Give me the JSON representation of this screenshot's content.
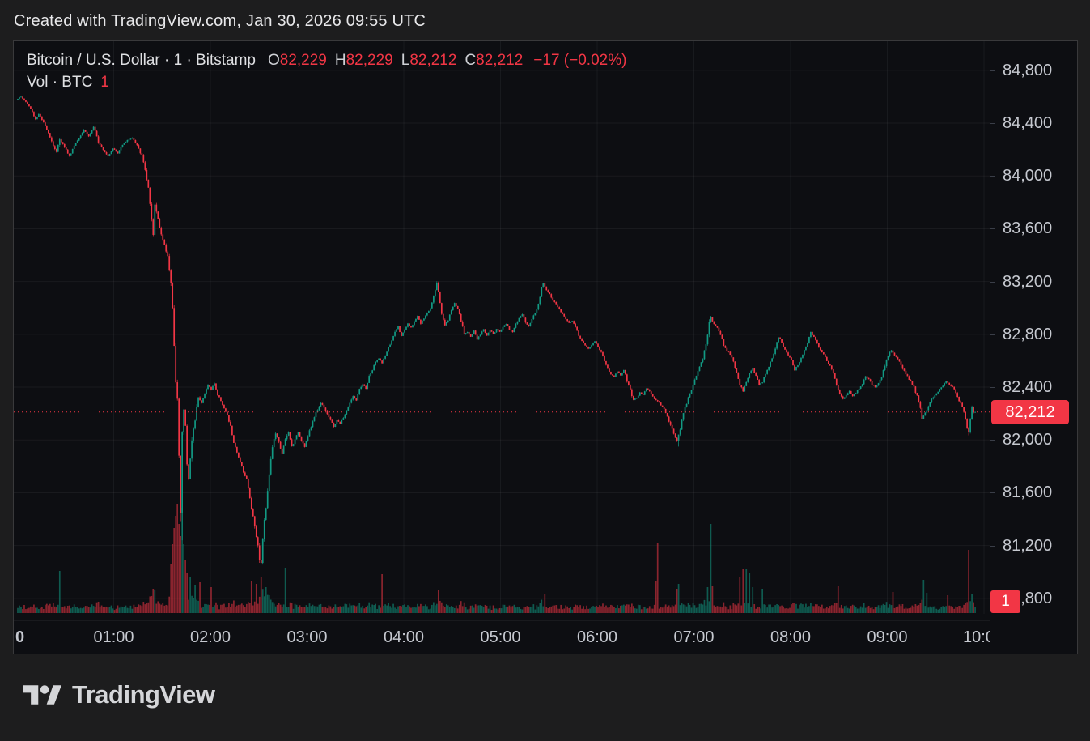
{
  "topbar": {
    "text": "Created with TradingView.com, Jan 30, 2026 09:55 UTC"
  },
  "legend": {
    "title": "Bitcoin / U.S. Dollar · 1 · Bitstamp",
    "ohlc": [
      {
        "label": "O",
        "value": "82,229"
      },
      {
        "label": "H",
        "value": "82,229"
      },
      {
        "label": "L",
        "value": "82,212"
      },
      {
        "label": "C",
        "value": "82,212"
      }
    ],
    "change": "−17 (−0.02%)",
    "volume_row": {
      "label": "Vol · BTC",
      "value": "1"
    }
  },
  "price_axis": {
    "ticks": [
      "84,800",
      "84,400",
      "84,000",
      "83,600",
      "83,200",
      "82,800",
      "82,400",
      "82,000",
      "81,600",
      "81,200",
      "80,800"
    ],
    "tick_prices": [
      84800,
      84400,
      84000,
      83600,
      83200,
      82800,
      82400,
      82000,
      81600,
      81200,
      80800
    ],
    "price_label": "82,212",
    "volume_label": "1"
  },
  "time_axis": {
    "ticks": [
      {
        "label": "0",
        "t": 0
      },
      {
        "label": "01:00",
        "t": 60
      },
      {
        "label": "02:00",
        "t": 120
      },
      {
        "label": "03:00",
        "t": 180
      },
      {
        "label": "04:00",
        "t": 240
      },
      {
        "label": "05:00",
        "t": 300
      },
      {
        "label": "06:00",
        "t": 360
      },
      {
        "label": "07:00",
        "t": 420
      },
      {
        "label": "08:00",
        "t": 480
      },
      {
        "label": "09:00",
        "t": 540
      },
      {
        "label": "10:0",
        "t": 600
      }
    ]
  },
  "footer": {
    "brand": "TradingView"
  },
  "colors": {
    "up": "#129a84",
    "down": "#f23645",
    "vol_up": "rgba(18,154,132,0.55)",
    "vol_down": "rgba(242,54,69,0.55)",
    "grid": "rgba(255,255,255,0.05)",
    "accent_red": "#f23645",
    "axis_text": "#c6c9d0",
    "panel_bg": "#0d0e12"
  },
  "chart_data": {
    "type": "candlestick",
    "symbol": "Bitcoin / U.S. Dollar",
    "interval": "1",
    "exchange": "Bitstamp",
    "session_start": "00:00",
    "session_end": "09:55",
    "minutes": 595,
    "current_price": 82212,
    "last": {
      "open": 82229,
      "high": 82229,
      "low": 82212,
      "close": 82212,
      "change": -17,
      "change_pct": -0.02
    },
    "y_axis": {
      "min_visible": 80800,
      "max_visible": 84800,
      "step": 400
    },
    "price_path": [
      [
        0,
        84580
      ],
      [
        3,
        84600
      ],
      [
        6,
        84560
      ],
      [
        9,
        84510
      ],
      [
        12,
        84430
      ],
      [
        14,
        84470
      ],
      [
        17,
        84400
      ],
      [
        20,
        84330
      ],
      [
        23,
        84230
      ],
      [
        25,
        84180
      ],
      [
        27,
        84280
      ],
      [
        30,
        84220
      ],
      [
        33,
        84150
      ],
      [
        36,
        84230
      ],
      [
        39,
        84290
      ],
      [
        42,
        84350
      ],
      [
        45,
        84300
      ],
      [
        48,
        84370
      ],
      [
        51,
        84260
      ],
      [
        54,
        84200
      ],
      [
        57,
        84150
      ],
      [
        60,
        84210
      ],
      [
        63,
        84170
      ],
      [
        66,
        84240
      ],
      [
        69,
        84270
      ],
      [
        72,
        84290
      ],
      [
        75,
        84230
      ],
      [
        78,
        84150
      ],
      [
        80,
        84050
      ],
      [
        82,
        83900
      ],
      [
        84,
        83650
      ],
      [
        85,
        83550
      ],
      [
        86,
        83780
      ],
      [
        88,
        83680
      ],
      [
        90,
        83560
      ],
      [
        92,
        83470
      ],
      [
        94,
        83390
      ],
      [
        96,
        83200
      ],
      [
        97,
        83000
      ],
      [
        98,
        82700
      ],
      [
        99,
        82420
      ],
      [
        100,
        82330
      ],
      [
        101,
        81900
      ],
      [
        102,
        81450
      ],
      [
        103,
        82050
      ],
      [
        104,
        82230
      ],
      [
        105,
        82100
      ],
      [
        106,
        81820
      ],
      [
        107,
        81700
      ],
      [
        108,
        81860
      ],
      [
        109,
        82000
      ],
      [
        111,
        82160
      ],
      [
        113,
        82330
      ],
      [
        115,
        82280
      ],
      [
        117,
        82350
      ],
      [
        119,
        82420
      ],
      [
        121,
        82380
      ],
      [
        123,
        82430
      ],
      [
        125,
        82340
      ],
      [
        127,
        82300
      ],
      [
        129,
        82240
      ],
      [
        131,
        82180
      ],
      [
        133,
        82100
      ],
      [
        135,
        81980
      ],
      [
        137,
        81900
      ],
      [
        139,
        81840
      ],
      [
        141,
        81760
      ],
      [
        143,
        81700
      ],
      [
        145,
        81560
      ],
      [
        147,
        81420
      ],
      [
        149,
        81280
      ],
      [
        151,
        81100
      ],
      [
        152,
        81060
      ],
      [
        153,
        81260
      ],
      [
        155,
        81500
      ],
      [
        157,
        81750
      ],
      [
        159,
        81950
      ],
      [
        161,
        82050
      ],
      [
        163,
        81980
      ],
      [
        165,
        81900
      ],
      [
        167,
        82000
      ],
      [
        169,
        82060
      ],
      [
        171,
        81950
      ],
      [
        173,
        82000
      ],
      [
        175,
        82060
      ],
      [
        177,
        82000
      ],
      [
        179,
        81950
      ],
      [
        181,
        82030
      ],
      [
        183,
        82100
      ],
      [
        185,
        82180
      ],
      [
        187,
        82230
      ],
      [
        189,
        82280
      ],
      [
        191,
        82250
      ],
      [
        193,
        82200
      ],
      [
        195,
        82150
      ],
      [
        197,
        82100
      ],
      [
        199,
        82150
      ],
      [
        201,
        82120
      ],
      [
        203,
        82170
      ],
      [
        205,
        82220
      ],
      [
        207,
        82280
      ],
      [
        209,
        82330
      ],
      [
        211,
        82300
      ],
      [
        213,
        82380
      ],
      [
        215,
        82420
      ],
      [
        217,
        82390
      ],
      [
        219,
        82480
      ],
      [
        221,
        82530
      ],
      [
        223,
        82590
      ],
      [
        225,
        82620
      ],
      [
        227,
        82580
      ],
      [
        229,
        82640
      ],
      [
        231,
        82700
      ],
      [
        233,
        82750
      ],
      [
        235,
        82820
      ],
      [
        237,
        82860
      ],
      [
        239,
        82790
      ],
      [
        241,
        82830
      ],
      [
        243,
        82880
      ],
      [
        245,
        82850
      ],
      [
        247,
        82900
      ],
      [
        249,
        82940
      ],
      [
        251,
        82880
      ],
      [
        253,
        82920
      ],
      [
        255,
        82960
      ],
      [
        257,
        83000
      ],
      [
        259,
        83100
      ],
      [
        261,
        83190
      ],
      [
        262,
        83120
      ],
      [
        264,
        82960
      ],
      [
        266,
        82870
      ],
      [
        268,
        82910
      ],
      [
        270,
        82980
      ],
      [
        272,
        83040
      ],
      [
        274,
        82990
      ],
      [
        276,
        82900
      ],
      [
        278,
        82800
      ],
      [
        280,
        82820
      ],
      [
        282,
        82780
      ],
      [
        284,
        82830
      ],
      [
        286,
        82760
      ],
      [
        288,
        82800
      ],
      [
        290,
        82840
      ],
      [
        292,
        82790
      ],
      [
        294,
        82830
      ],
      [
        296,
        82800
      ],
      [
        298,
        82840
      ],
      [
        300,
        82820
      ],
      [
        302,
        82860
      ],
      [
        304,
        82880
      ],
      [
        306,
        82840
      ],
      [
        308,
        82820
      ],
      [
        310,
        82880
      ],
      [
        312,
        82920
      ],
      [
        314,
        82950
      ],
      [
        316,
        82890
      ],
      [
        318,
        82860
      ],
      [
        320,
        82920
      ],
      [
        322,
        82960
      ],
      [
        324,
        83020
      ],
      [
        326,
        83160
      ],
      [
        327,
        83190
      ],
      [
        329,
        83140
      ],
      [
        331,
        83100
      ],
      [
        333,
        83060
      ],
      [
        335,
        83020
      ],
      [
        337,
        82990
      ],
      [
        339,
        82950
      ],
      [
        341,
        82920
      ],
      [
        343,
        82890
      ],
      [
        345,
        82900
      ],
      [
        347,
        82860
      ],
      [
        349,
        82790
      ],
      [
        351,
        82750
      ],
      [
        353,
        82720
      ],
      [
        355,
        82690
      ],
      [
        357,
        82720
      ],
      [
        359,
        82750
      ],
      [
        361,
        82710
      ],
      [
        363,
        82660
      ],
      [
        365,
        82600
      ],
      [
        367,
        82540
      ],
      [
        369,
        82500
      ],
      [
        371,
        82480
      ],
      [
        373,
        82520
      ],
      [
        375,
        82490
      ],
      [
        377,
        82530
      ],
      [
        379,
        82450
      ],
      [
        381,
        82380
      ],
      [
        383,
        82300
      ],
      [
        385,
        82320
      ],
      [
        387,
        82360
      ],
      [
        389,
        82340
      ],
      [
        391,
        82390
      ],
      [
        393,
        82370
      ],
      [
        395,
        82330
      ],
      [
        397,
        82300
      ],
      [
        399,
        82280
      ],
      [
        401,
        82250
      ],
      [
        403,
        82210
      ],
      [
        405,
        82140
      ],
      [
        407,
        82080
      ],
      [
        409,
        82020
      ],
      [
        410,
        81990
      ],
      [
        412,
        82080
      ],
      [
        414,
        82200
      ],
      [
        416,
        82280
      ],
      [
        418,
        82350
      ],
      [
        420,
        82420
      ],
      [
        422,
        82480
      ],
      [
        424,
        82550
      ],
      [
        426,
        82620
      ],
      [
        428,
        82720
      ],
      [
        430,
        82900
      ],
      [
        431,
        82930
      ],
      [
        433,
        82880
      ],
      [
        435,
        82850
      ],
      [
        437,
        82800
      ],
      [
        439,
        82720
      ],
      [
        441,
        82680
      ],
      [
        443,
        82650
      ],
      [
        445,
        82600
      ],
      [
        447,
        82500
      ],
      [
        449,
        82420
      ],
      [
        451,
        82370
      ],
      [
        453,
        82440
      ],
      [
        455,
        82500
      ],
      [
        457,
        82540
      ],
      [
        459,
        82480
      ],
      [
        461,
        82420
      ],
      [
        463,
        82440
      ],
      [
        465,
        82500
      ],
      [
        467,
        82560
      ],
      [
        469,
        82620
      ],
      [
        471,
        82700
      ],
      [
        473,
        82780
      ],
      [
        475,
        82740
      ],
      [
        477,
        82680
      ],
      [
        479,
        82640
      ],
      [
        481,
        82600
      ],
      [
        483,
        82530
      ],
      [
        485,
        82570
      ],
      [
        487,
        82620
      ],
      [
        489,
        82680
      ],
      [
        491,
        82740
      ],
      [
        493,
        82815
      ],
      [
        495,
        82780
      ],
      [
        497,
        82730
      ],
      [
        499,
        82680
      ],
      [
        501,
        82650
      ],
      [
        503,
        82600
      ],
      [
        505,
        82560
      ],
      [
        507,
        82500
      ],
      [
        509,
        82420
      ],
      [
        511,
        82350
      ],
      [
        513,
        82310
      ],
      [
        515,
        82340
      ],
      [
        517,
        82370
      ],
      [
        519,
        82330
      ],
      [
        521,
        82360
      ],
      [
        523,
        82390
      ],
      [
        525,
        82420
      ],
      [
        527,
        82480
      ],
      [
        529,
        82460
      ],
      [
        531,
        82420
      ],
      [
        533,
        82400
      ],
      [
        535,
        82430
      ],
      [
        537,
        82480
      ],
      [
        539,
        82560
      ],
      [
        541,
        82640
      ],
      [
        543,
        82680
      ],
      [
        545,
        82640
      ],
      [
        547,
        82610
      ],
      [
        549,
        82570
      ],
      [
        551,
        82520
      ],
      [
        553,
        82480
      ],
      [
        555,
        82440
      ],
      [
        557,
        82400
      ],
      [
        559,
        82330
      ],
      [
        561,
        82250
      ],
      [
        562,
        82160
      ],
      [
        564,
        82200
      ],
      [
        566,
        82260
      ],
      [
        568,
        82310
      ],
      [
        570,
        82340
      ],
      [
        572,
        82370
      ],
      [
        574,
        82400
      ],
      [
        576,
        82430
      ],
      [
        577,
        82450
      ],
      [
        579,
        82420
      ],
      [
        581,
        82400
      ],
      [
        583,
        82360
      ],
      [
        585,
        82300
      ],
      [
        587,
        82250
      ],
      [
        589,
        82160
      ],
      [
        590,
        82090
      ],
      [
        591,
        82060
      ],
      [
        592,
        82160
      ],
      [
        593,
        82250
      ],
      [
        594,
        82212
      ]
    ],
    "wick_low_overrides": {
      "101": 81385,
      "102": 81240,
      "151": 81120,
      "152": 81056,
      "410": 81950,
      "590": 82035
    },
    "wick_high_overrides": {
      "260": 83150,
      "261": 83200,
      "326": 83150,
      "327": 83190,
      "430": 82935,
      "493": 82820
    },
    "volume_spikes": [
      [
        26,
        52
      ],
      [
        84,
        30
      ],
      [
        95,
        60
      ],
      [
        96,
        85
      ],
      [
        97,
        105
      ],
      [
        98,
        120
      ],
      [
        99,
        135
      ],
      [
        100,
        110
      ],
      [
        101,
        95
      ],
      [
        102,
        130
      ],
      [
        103,
        85
      ],
      [
        104,
        65
      ],
      [
        105,
        50
      ],
      [
        107,
        45
      ],
      [
        110,
        35
      ],
      [
        113,
        38
      ],
      [
        120,
        32
      ],
      [
        145,
        40
      ],
      [
        148,
        36
      ],
      [
        151,
        44
      ],
      [
        154,
        32
      ],
      [
        166,
        56
      ],
      [
        226,
        48
      ],
      [
        261,
        28
      ],
      [
        327,
        24
      ],
      [
        396,
        39
      ],
      [
        397,
        86
      ],
      [
        409,
        30
      ],
      [
        410,
        36
      ],
      [
        428,
        32
      ],
      [
        430,
        110
      ],
      [
        431,
        33
      ],
      [
        448,
        45
      ],
      [
        450,
        55
      ],
      [
        452,
        55
      ],
      [
        454,
        50
      ],
      [
        456,
        32
      ],
      [
        462,
        30
      ],
      [
        509,
        33
      ],
      [
        543,
        26
      ],
      [
        562,
        41
      ],
      [
        564,
        25
      ],
      [
        577,
        22
      ],
      [
        590,
        78
      ],
      [
        592,
        23
      ]
    ]
  }
}
